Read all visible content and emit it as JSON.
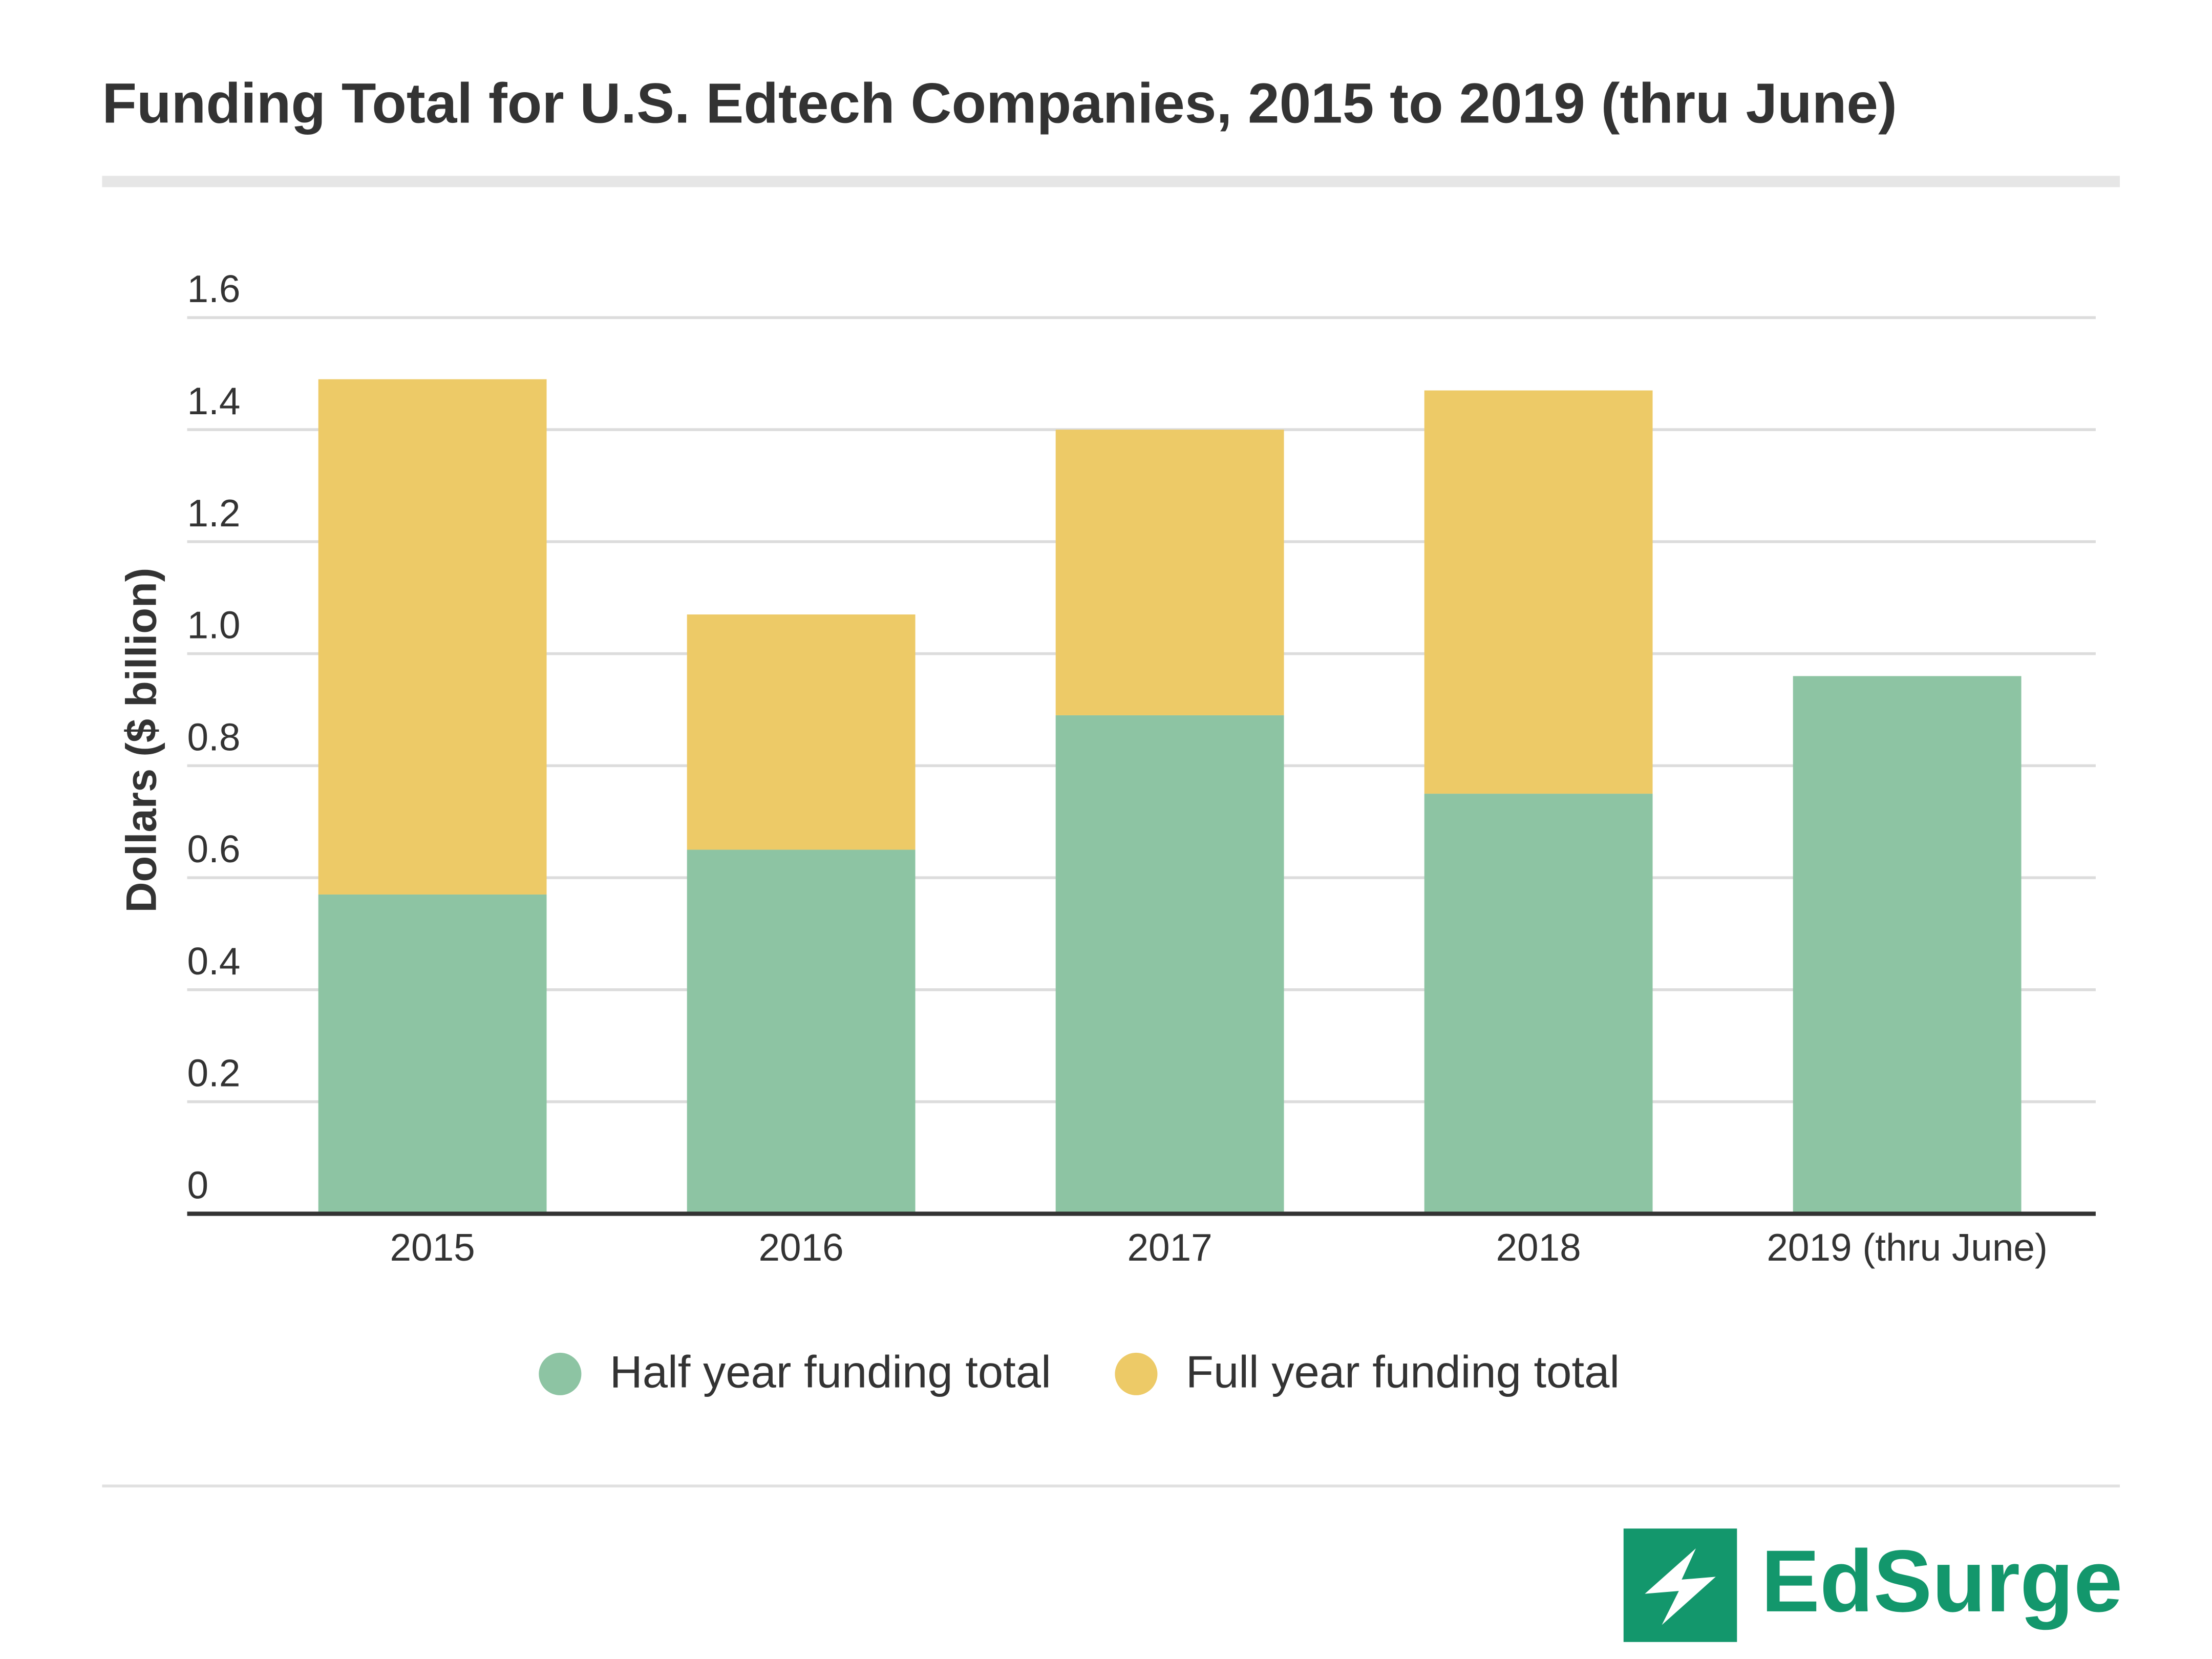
{
  "chart_data": {
    "type": "stacked_bar",
    "title": "Funding Total for U.S. Edtech Companies, 2015 to 2019 (thru June)",
    "y_label": "Dollars ($ billion)",
    "categories": [
      "2015",
      "2016",
      "2017",
      "2018",
      "2019 (thru June)"
    ],
    "series": [
      {
        "name": "Half year funding total",
        "color": "#8dc4a3",
        "values": [
          0.57,
          0.65,
          0.89,
          0.75,
          0.96
        ]
      },
      {
        "name": "Full year funding total",
        "color": "#edca67",
        "values": [
          0.92,
          0.42,
          0.51,
          0.72,
          null
        ]
      }
    ],
    "ylim": [
      0,
      1.6
    ],
    "yticks": [
      0,
      0.2,
      0.4,
      0.6,
      0.8,
      {
        "value": 1,
        "label": "1.0"
      },
      1.2,
      1.4,
      1.6
    ],
    "grid": true,
    "legend": "bottom"
  },
  "brand": "EdSurge"
}
